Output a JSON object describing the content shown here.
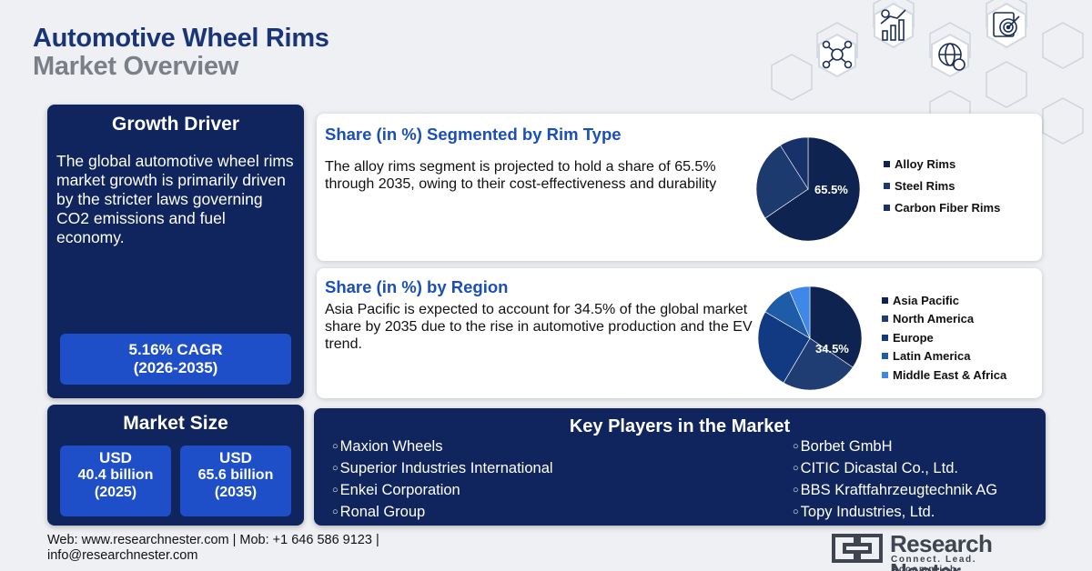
{
  "header": {
    "title_line1": "Automotive Wheel Rims",
    "title_line2": "Market Overview"
  },
  "growth_driver": {
    "heading": "Growth Driver",
    "text": "The global automotive wheel rims market growth is primarily driven by the stricter laws governing CO2 emissions and fuel economy.",
    "cagr_line1": "5.16% CAGR",
    "cagr_line2": "(2026-2035)"
  },
  "market_size": {
    "heading": "Market Size",
    "boxes": [
      {
        "currency": "USD",
        "value": "40.4 billion",
        "year": "(2025)"
      },
      {
        "currency": "USD",
        "value": "65.6 billion",
        "year": "(2035)"
      }
    ]
  },
  "rim_type": {
    "title": "Share (in %) Segmented by Rim Type",
    "text": "The alloy rims segment is projected to hold a share of 65.5% through 2035, owing to their cost-effectiveness and durability",
    "pie_label": "65.5%"
  },
  "region": {
    "title": "Share (in %) by Region",
    "text": "Asia Pacific is expected to account for 34.5% of the global market share by 2035 due to the rise in automotive production and the EV trend.",
    "pie_label": "34.5%"
  },
  "chart_data": [
    {
      "type": "pie",
      "categories": [
        "Alloy Rims",
        "Steel Rims",
        "Carbon Fiber Rims"
      ],
      "values": [
        65.5,
        25.5,
        9.0
      ],
      "colors": [
        "#0f2350",
        "#1d3a6e",
        "#17326b"
      ],
      "legend_position": "right"
    },
    {
      "type": "pie",
      "categories": [
        "Asia Pacific",
        "North America",
        "Europe",
        "Latin America",
        "Middle East & Africa"
      ],
      "values": [
        34.5,
        24,
        25,
        10,
        6.5
      ],
      "colors": [
        "#0e2350",
        "#1f3d72",
        "#123a82",
        "#1f5ca8",
        "#3f88e8"
      ],
      "legend_position": "right"
    }
  ],
  "key_players": {
    "heading": "Key Players in the Market",
    "left": [
      "Maxion Wheels",
      "Superior Industries International",
      "Enkei Corporation",
      "Ronal Group"
    ],
    "right": [
      "Borbet GmbH",
      "CITIC Dicastal Co., Ltd.",
      "BBS Kraftfahrzeugtechnik AG",
      "Topy Industries, Ltd."
    ]
  },
  "footer": {
    "line1": "Web: www.researchnester.com | Mob: +1 646 586 9123 |",
    "line2": "info@researchnester.com"
  },
  "logo": {
    "name": "Research Nester",
    "tagline": "Connect. Lead. Accomplish"
  }
}
